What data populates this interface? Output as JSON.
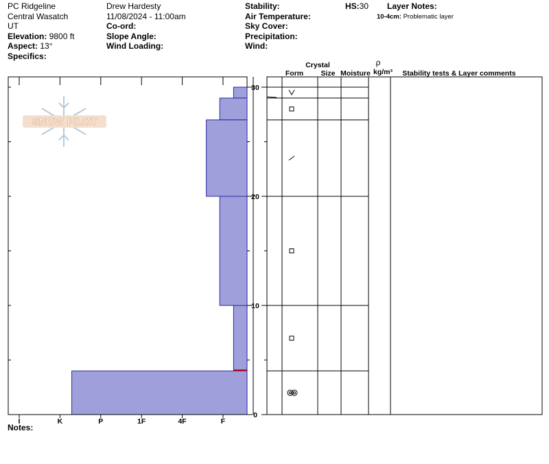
{
  "site": {
    "name": "PC Ridgeline",
    "range": "Central Wasatch",
    "state": "UT"
  },
  "observer": "Drew Hardesty",
  "datetime": "11/08/2024 - 11:00am",
  "fields": {
    "elevation_label": "Elevation:",
    "elevation": "9800 ft",
    "aspect_label": "Aspect:",
    "aspect": "13°",
    "specifics_label": "Specifics:",
    "coord_label": "Co-ord:",
    "slope_label": "Slope Angle:",
    "wind_loading_label": "Wind Loading:",
    "stability_label": "Stability:",
    "air_temp_label": "Air Temperature:",
    "sky_label": "Sky Cover:",
    "precip_label": "Precipitation:",
    "wind_label": "Wind:",
    "hs_label": "HS:",
    "hs": "30",
    "layer_notes_label": "Layer Notes:",
    "layer_note_range": "10-4cm:",
    "layer_note_text": "Problematic layer"
  },
  "logo": {
    "text": "SNOW PILOT"
  },
  "table": {
    "crystal_label": "Crystal",
    "rho_label": "ρ",
    "form_label": "Form",
    "size_label": "Size",
    "moisture_label": "Moisture",
    "density_unit": "kg/m³",
    "comments_label": "Stability tests & Layer comments"
  },
  "notes_label": "Notes:",
  "chart_data": {
    "type": "bar",
    "orientation": "horizontal-step",
    "x_categories": [
      "I",
      "K",
      "P",
      "1F",
      "4F",
      "F"
    ],
    "y_ticks": [
      0,
      10,
      20,
      30
    ],
    "ylim": [
      0,
      30
    ],
    "xlim": [
      0,
      6
    ],
    "layers": [
      {
        "bottom": 29,
        "top": 30,
        "hardness": 0.33,
        "form": "vee"
      },
      {
        "bottom": 27,
        "top": 29,
        "hardness": 0.67,
        "form": "square"
      },
      {
        "bottom": 20,
        "top": 27,
        "hardness": 1.0,
        "form": "slash"
      },
      {
        "bottom": 10,
        "top": 20,
        "hardness": 0.67,
        "form": "square"
      },
      {
        "bottom": 4,
        "top": 10,
        "hardness": 0.33,
        "form": "square"
      },
      {
        "bottom": 0,
        "top": 4,
        "hardness": 4.3,
        "form": "ring"
      }
    ],
    "problem_layer_cm": 4,
    "colors": {
      "fill": "#9f9fdb",
      "edge": "#2a2aa0",
      "problem": "#c00000"
    }
  }
}
